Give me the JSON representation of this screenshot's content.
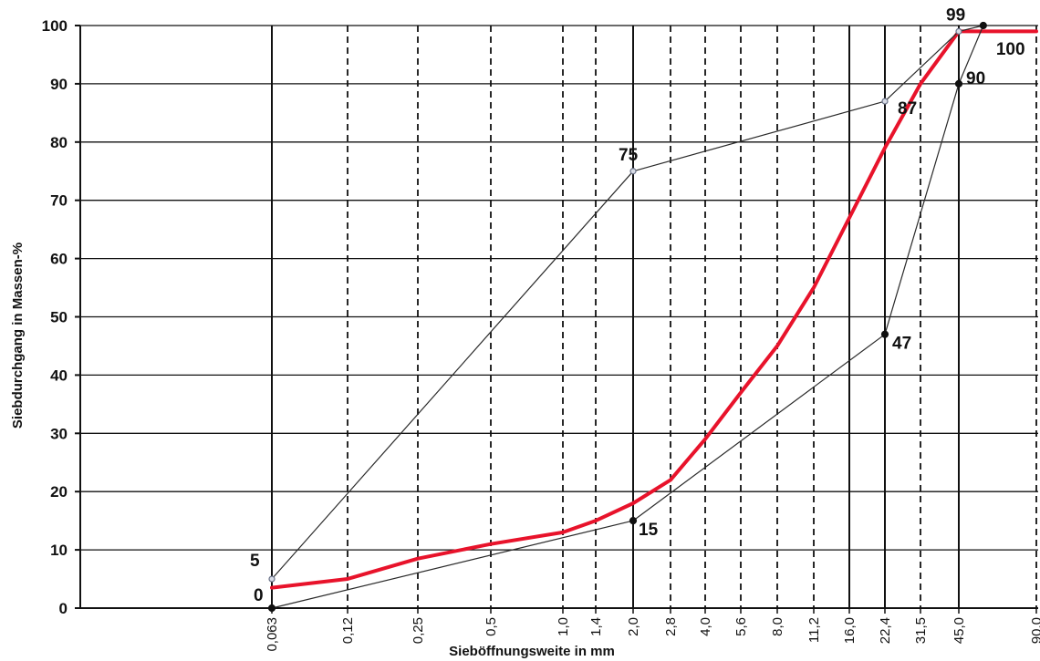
{
  "chart_data": {
    "type": "line",
    "ylabel": "Siebdurchgang in Massen-%",
    "xlabel": "Sieböffnungsweite  in mm",
    "ylim": [
      0,
      100
    ],
    "y_ticks": [
      "0",
      "10",
      "20",
      "30",
      "40",
      "50",
      "60",
      "70",
      "80",
      "90",
      "100"
    ],
    "x_ticks": [
      "0,063",
      "0,12",
      "0,25",
      "0,5",
      "1,0",
      "1,4",
      "2,0",
      "2,8",
      "4,0",
      "5,6",
      "8,0",
      "11,2",
      "16,0",
      "22,4",
      "31,5",
      "45,0",
      "90,0"
    ],
    "series": [
      {
        "color": "#e8132b",
        "points": [
          [
            0.063,
            3.5
          ],
          [
            0.12,
            5
          ],
          [
            0.25,
            8.5
          ],
          [
            0.5,
            11
          ],
          [
            1.0,
            13
          ],
          [
            1.4,
            15
          ],
          [
            2.0,
            18
          ],
          [
            2.8,
            22
          ],
          [
            4.0,
            29
          ],
          [
            5.6,
            37
          ],
          [
            8.0,
            45
          ],
          [
            11.2,
            55
          ],
          [
            16.0,
            67
          ],
          [
            22.4,
            79
          ],
          [
            31.5,
            90
          ],
          [
            45.0,
            99
          ],
          [
            90.0,
            99
          ]
        ]
      },
      {
        "color": "#2a2a2a",
        "points": [
          [
            0.063,
            5
          ],
          [
            2.0,
            75
          ],
          [
            22.4,
            87
          ],
          [
            45.0,
            99
          ],
          [
            56.0,
            100
          ]
        ],
        "labels": [
          "5",
          "75",
          "87",
          "99",
          "100"
        ]
      },
      {
        "color": "#2a2a2a",
        "points": [
          [
            0.063,
            0
          ],
          [
            2.0,
            15
          ],
          [
            22.4,
            47
          ],
          [
            45.0,
            90
          ],
          [
            56.0,
            100
          ]
        ],
        "labels": [
          "0",
          "15",
          "47",
          "90"
        ]
      }
    ]
  }
}
